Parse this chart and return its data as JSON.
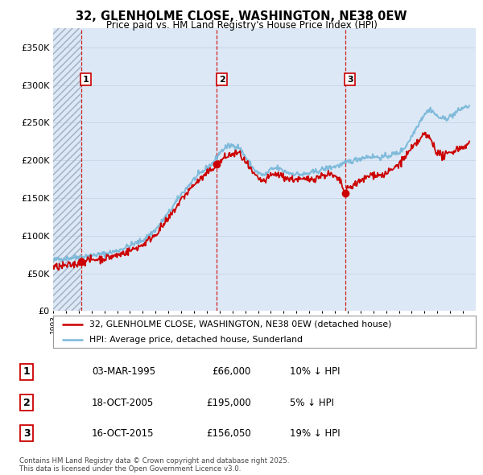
{
  "title": "32, GLENHOLME CLOSE, WASHINGTON, NE38 0EW",
  "subtitle": "Price paid vs. HM Land Registry's House Price Index (HPI)",
  "sale_labels_info": [
    {
      "num": "1",
      "date_str": "03-MAR-1995",
      "price_str": "£66,000",
      "hpi_str": "10% ↓ HPI"
    },
    {
      "num": "2",
      "date_str": "18-OCT-2005",
      "price_str": "£195,000",
      "hpi_str": "5% ↓ HPI"
    },
    {
      "num": "3",
      "date_str": "16-OCT-2015",
      "price_str": "£156,050",
      "hpi_str": "19% ↓ HPI"
    }
  ],
  "hpi_line_color": "#7ab8d9",
  "price_line_color": "#cc0000",
  "sale_marker_color": "#cc0000",
  "dashed_line_color": "#cc0000",
  "background_color": "#ffffff",
  "plot_bg_color": "#dce8f5",
  "ylim": [
    0,
    375000
  ],
  "yticks": [
    0,
    50000,
    100000,
    150000,
    200000,
    250000,
    300000,
    350000
  ],
  "xlim_start": 1993.0,
  "xlim_end": 2026.0,
  "legend_label_red": "32, GLENHOLME CLOSE, WASHINGTON, NE38 0EW (detached house)",
  "legend_label_blue": "HPI: Average price, detached house, Sunderland",
  "footer_text": "Contains HM Land Registry data © Crown copyright and database right 2025.\nThis data is licensed under the Open Government Licence v3.0.",
  "sale_years": [
    1995.17,
    2005.79,
    2015.79
  ],
  "sale_prices": [
    66000,
    195000,
    156050
  ],
  "sale_nums": [
    "1",
    "2",
    "3"
  ],
  "hatch_end_year": 1995.17
}
